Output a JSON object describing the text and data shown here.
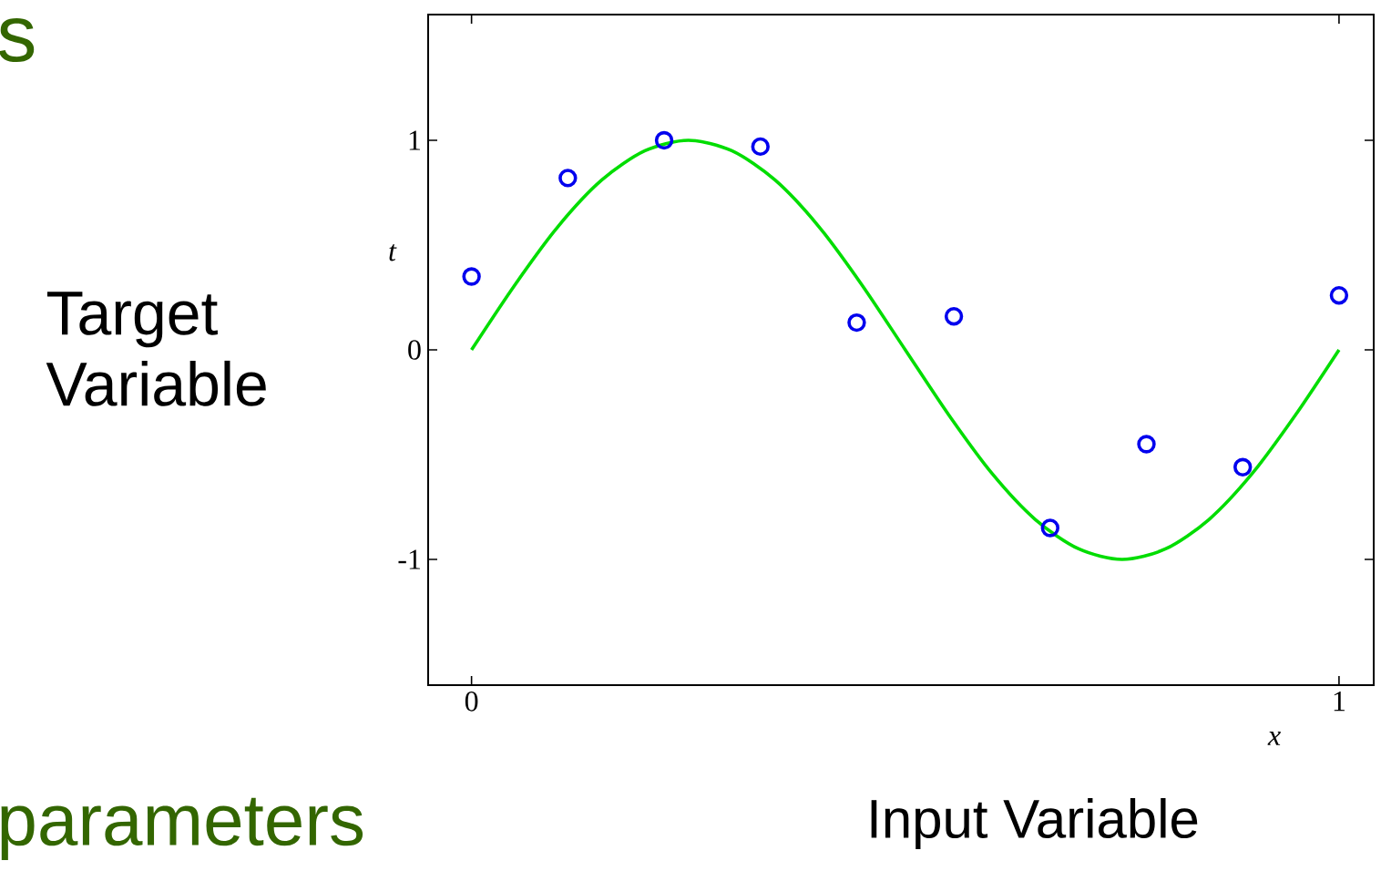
{
  "chart_data": {
    "type": "scatter",
    "xlabel": "x",
    "ylabel": "t",
    "xlim": [
      -0.05,
      1.04
    ],
    "ylim": [
      -1.6,
      1.6
    ],
    "xticks": [
      0,
      1
    ],
    "yticks": [
      -1,
      0,
      1
    ],
    "tick_labels": "xy",
    "grid": false,
    "series": [
      {
        "type": "line",
        "color": "#00dd00",
        "marker": "none",
        "x": [
          0,
          0.05,
          0.1,
          0.15,
          0.2,
          0.25,
          0.3,
          0.35,
          0.4,
          0.45,
          0.5,
          0.55,
          0.6,
          0.65,
          0.7,
          0.75,
          0.8,
          0.85,
          0.9,
          0.95,
          1
        ],
        "values": [
          0,
          0.31,
          0.59,
          0.81,
          0.95,
          1,
          0.95,
          0.81,
          0.59,
          0.31,
          0,
          -0.31,
          -0.59,
          -0.81,
          -0.95,
          -1,
          -0.95,
          -0.81,
          -0.59,
          -0.31,
          0
        ]
      },
      {
        "color": "#0000ee",
        "marker": "circle",
        "x": [
          0,
          0.111,
          0.222,
          0.333,
          0.444,
          0.556,
          0.667,
          0.778,
          0.889,
          1
        ],
        "values": [
          0.35,
          0.82,
          1.0,
          0.97,
          0.13,
          0.16,
          -0.85,
          -0.45,
          -0.56,
          0.26
        ]
      }
    ],
    "annotations": [
      "Target Variable",
      "Input Variable",
      "s",
      "parameters"
    ]
  }
}
